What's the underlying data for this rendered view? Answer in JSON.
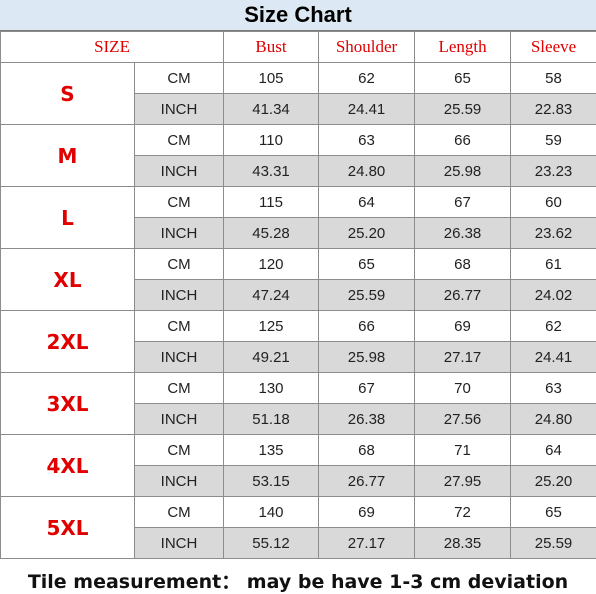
{
  "title": "Size Chart",
  "columns": {
    "size": "SIZE",
    "bust": "Bust",
    "shoulder": "Shoulder",
    "length": "Length",
    "sleeve": "Sleeve"
  },
  "sizes": [
    {
      "label": "S",
      "cm": {
        "unit": "CM",
        "values": [
          "105",
          "62",
          "65",
          "58"
        ]
      },
      "inch": {
        "unit": "INCH",
        "values": [
          "41.34",
          "24.41",
          "25.59",
          "22.83"
        ]
      }
    },
    {
      "label": "M",
      "cm": {
        "unit": "CM",
        "values": [
          "110",
          "63",
          "66",
          "59"
        ]
      },
      "inch": {
        "unit": "INCH",
        "values": [
          "43.31",
          "24.80",
          "25.98",
          "23.23"
        ]
      }
    },
    {
      "label": "L",
      "cm": {
        "unit": "CM",
        "values": [
          "115",
          "64",
          "67",
          "60"
        ]
      },
      "inch": {
        "unit": "INCH",
        "values": [
          "45.28",
          "25.20",
          "26.38",
          "23.62"
        ]
      }
    },
    {
      "label": "XL",
      "cm": {
        "unit": "CM",
        "values": [
          "120",
          "65",
          "68",
          "61"
        ]
      },
      "inch": {
        "unit": "INCH",
        "values": [
          "47.24",
          "25.59",
          "26.77",
          "24.02"
        ]
      }
    },
    {
      "label": "2XL",
      "cm": {
        "unit": "CM",
        "values": [
          "125",
          "66",
          "69",
          "62"
        ]
      },
      "inch": {
        "unit": "INCH",
        "values": [
          "49.21",
          "25.98",
          "27.17",
          "24.41"
        ]
      }
    },
    {
      "label": "3XL",
      "cm": {
        "unit": "CM",
        "values": [
          "130",
          "67",
          "70",
          "63"
        ]
      },
      "inch": {
        "unit": "INCH",
        "values": [
          "51.18",
          "26.38",
          "27.56",
          "24.80"
        ]
      }
    },
    {
      "label": "4XL",
      "cm": {
        "unit": "CM",
        "values": [
          "135",
          "68",
          "71",
          "64"
        ]
      },
      "inch": {
        "unit": "INCH",
        "values": [
          "53.15",
          "26.77",
          "27.95",
          "25.20"
        ]
      }
    },
    {
      "label": "5XL",
      "cm": {
        "unit": "CM",
        "values": [
          "140",
          "69",
          "72",
          "65"
        ]
      },
      "inch": {
        "unit": "INCH",
        "values": [
          "55.12",
          "27.17",
          "28.35",
          "25.59"
        ]
      }
    }
  ],
  "footer": "Tile measurement： may be have 1-3 cm deviation",
  "colors": {
    "title_bg": "#dce8f3",
    "accent_red": "#e00000",
    "inch_row_bg": "#d9d9d9",
    "grid": "#8c8c8c"
  }
}
